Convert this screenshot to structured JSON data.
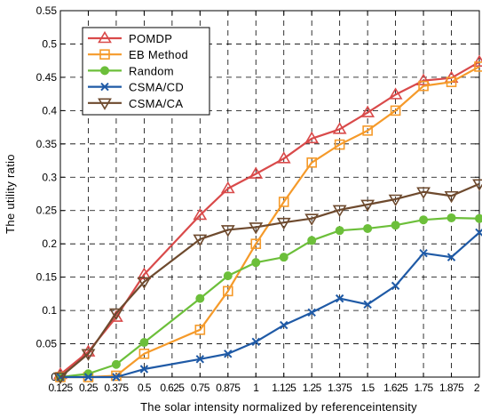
{
  "chart_data": {
    "type": "line",
    "xlabel": "The solar intensity normalized by referenceintensity",
    "ylabel": "The utility ratio",
    "xlim": [
      0.125,
      2
    ],
    "ylim": [
      0,
      0.55
    ],
    "grid": true,
    "legend_position": "top-left",
    "x": [
      0.125,
      0.25,
      0.375,
      0.5,
      0.625,
      0.75,
      0.875,
      1,
      1.125,
      1.25,
      1.375,
      1.5,
      1.625,
      1.75,
      1.875,
      2
    ],
    "x_tick_labels": [
      "0.125",
      "0.25",
      "0.375",
      "0.5",
      "0.625",
      "0.75",
      "0.875",
      "1",
      "1.125",
      "1.25",
      "1.375",
      "1.5",
      "1.625",
      "1.75",
      "1.875",
      "2"
    ],
    "y_ticks": [
      0,
      0.05,
      0.1,
      0.15,
      0.2,
      0.25,
      0.3,
      0.35,
      0.4,
      0.45,
      0.5,
      0.55
    ],
    "y_tick_labels": [
      "0",
      "0.05",
      "0.1",
      "0.15",
      "0.2",
      "0.25",
      "0.3",
      "0.35",
      "0.4",
      "0.45",
      "0.5",
      "0.55"
    ],
    "series": [
      {
        "name": "POMDP",
        "color": "#d94a4a",
        "marker": "triangle-up",
        "values": [
          0.004,
          0.038,
          0.09,
          0.154,
          null,
          0.243,
          0.283,
          0.305,
          0.328,
          0.358,
          0.372,
          0.397,
          0.424,
          0.445,
          0.449,
          0.473
        ]
      },
      {
        "name": "EB Method",
        "color": "#f59a2a",
        "marker": "square",
        "values": [
          0.0,
          0.0,
          0.002,
          0.035,
          null,
          0.071,
          0.129,
          0.2,
          0.263,
          0.322,
          0.349,
          0.37,
          0.4,
          0.437,
          0.443,
          0.466
        ]
      },
      {
        "name": "Random",
        "color": "#6cbf3a",
        "marker": "circle",
        "values": [
          0.0,
          0.005,
          0.019,
          0.052,
          null,
          0.118,
          0.152,
          0.172,
          0.18,
          0.205,
          0.22,
          0.223,
          0.228,
          0.236,
          0.239,
          0.238
        ]
      },
      {
        "name": "CSMA/CD",
        "color": "#1f5aa6",
        "marker": "x",
        "values": [
          0.0,
          0.0,
          0.0,
          0.012,
          null,
          0.027,
          0.035,
          0.053,
          0.078,
          0.097,
          0.118,
          0.109,
          0.137,
          0.186,
          0.18,
          0.217
        ]
      },
      {
        "name": "CSMA/CA",
        "color": "#6e4a2e",
        "marker": "triangle-down",
        "values": [
          0.0,
          0.035,
          0.096,
          0.143,
          null,
          0.207,
          0.221,
          0.225,
          0.232,
          0.238,
          0.251,
          0.259,
          0.267,
          0.278,
          0.272,
          0.29
        ]
      }
    ]
  }
}
